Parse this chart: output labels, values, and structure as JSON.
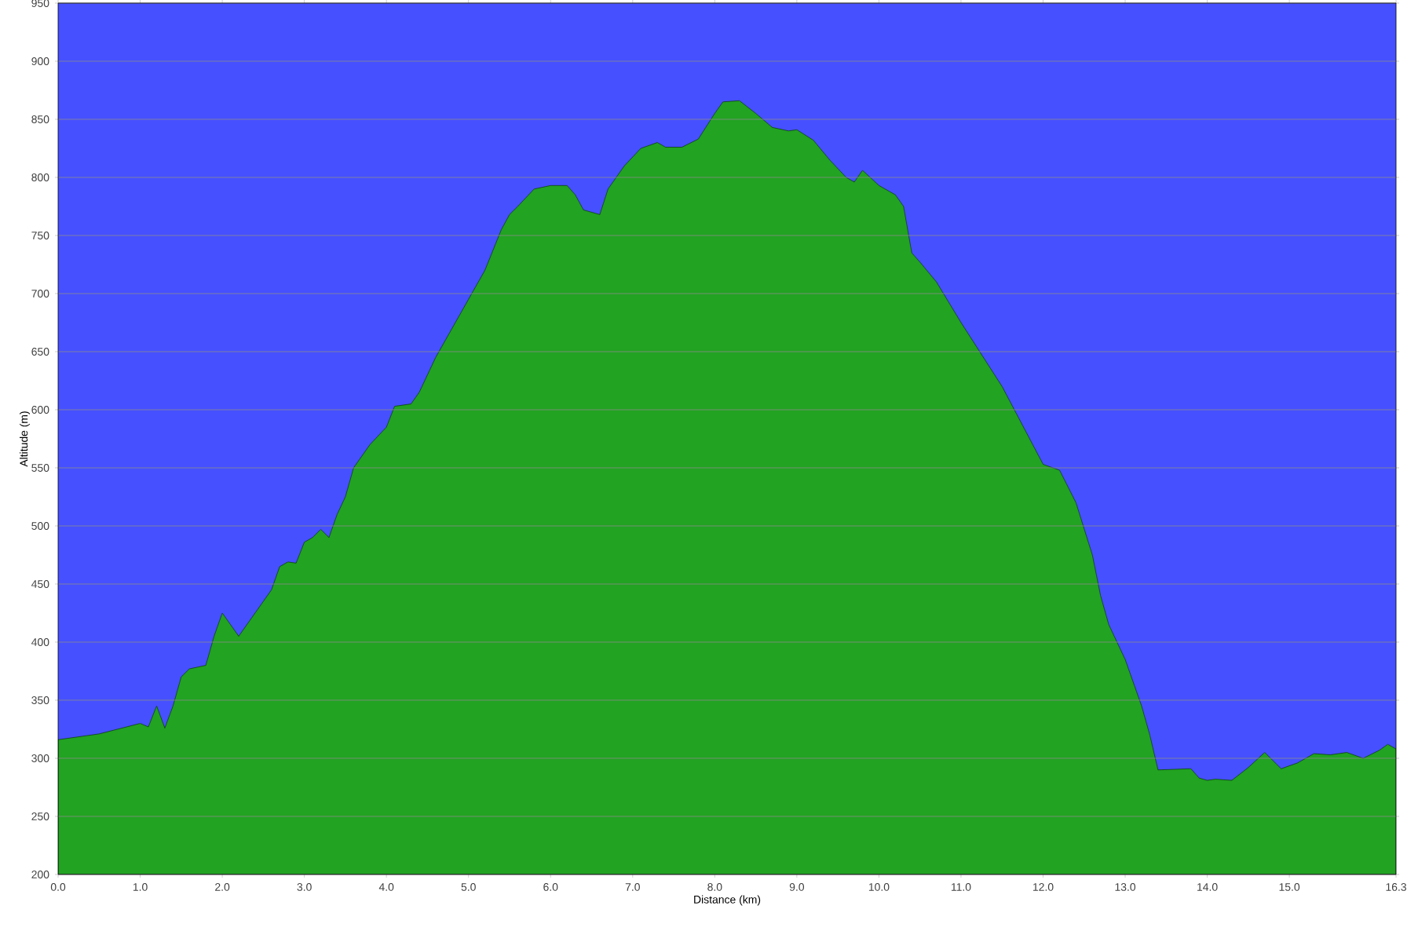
{
  "chart_data": {
    "type": "area",
    "xlabel": "Distance (km)",
    "ylabel": "Altitude (m)",
    "x": [
      0,
      0.5,
      1.0,
      1.1,
      1.2,
      1.3,
      1.4,
      1.5,
      1.6,
      1.8,
      1.9,
      2.0,
      2.2,
      2.4,
      2.6,
      2.7,
      2.8,
      2.9,
      3.0,
      3.1,
      3.2,
      3.3,
      3.4,
      3.5,
      3.6,
      3.8,
      4.0,
      4.1,
      4.3,
      4.4,
      4.6,
      4.8,
      5.0,
      5.2,
      5.4,
      5.5,
      5.6,
      5.8,
      6.0,
      6.2,
      6.3,
      6.4,
      6.6,
      6.7,
      6.9,
      7.1,
      7.3,
      7.4,
      7.6,
      7.8,
      8.0,
      8.1,
      8.3,
      8.5,
      8.7,
      8.9,
      9.0,
      9.2,
      9.4,
      9.6,
      9.7,
      9.8,
      10.0,
      10.2,
      10.3,
      10.4,
      10.5,
      10.7,
      11.0,
      11.5,
      12.0,
      12.2,
      12.4,
      12.6,
      12.7,
      12.8,
      13.0,
      13.2,
      13.3,
      13.4,
      13.8,
      13.9,
      14.0,
      14.1,
      14.3,
      14.5,
      14.7,
      14.9,
      15.1,
      15.3,
      15.5,
      15.7,
      15.9,
      16.1,
      16.2,
      16.3
    ],
    "values": [
      316,
      321,
      330,
      327,
      345,
      326,
      345,
      370,
      377,
      380,
      405,
      425,
      405,
      425,
      445,
      465,
      469,
      468,
      486,
      490,
      497,
      490,
      510,
      525,
      550,
      570,
      585,
      603,
      605,
      615,
      645,
      670,
      695,
      720,
      755,
      768,
      775,
      790,
      793,
      793,
      785,
      772,
      768,
      790,
      810,
      825,
      830,
      826,
      826,
      833,
      855,
      865,
      866,
      855,
      843,
      840,
      841,
      832,
      815,
      800,
      796,
      806,
      793,
      785,
      775,
      735,
      727,
      710,
      675,
      620,
      553,
      548,
      520,
      475,
      440,
      415,
      385,
      345,
      320,
      290,
      291,
      283,
      281,
      282,
      281,
      292,
      305,
      291,
      296,
      304,
      303,
      305,
      300,
      307,
      312,
      308
    ],
    "color": "#22a322",
    "xlim": [
      0,
      16.3
    ],
    "xticks": [
      {
        "value": 0,
        "label": "0.0"
      },
      {
        "value": 1,
        "label": "1.0"
      },
      {
        "value": 2,
        "label": "2.0"
      },
      {
        "value": 3,
        "label": "3.0"
      },
      {
        "value": 4,
        "label": "4.0"
      },
      {
        "value": 5,
        "label": "5.0"
      },
      {
        "value": 6,
        "label": "6.0"
      },
      {
        "value": 7,
        "label": "7.0"
      },
      {
        "value": 8,
        "label": "8.0"
      },
      {
        "value": 9,
        "label": "9.0"
      },
      {
        "value": 10,
        "label": "10.0"
      },
      {
        "value": 11,
        "label": "11.0"
      },
      {
        "value": 12,
        "label": "12.0"
      },
      {
        "value": 13,
        "label": "13.0"
      },
      {
        "value": 14,
        "label": "14.0"
      },
      {
        "value": 15,
        "label": "15.0"
      },
      {
        "value": 16.3,
        "label": "16.3"
      }
    ],
    "ylim": [
      200,
      950
    ],
    "yticks": [
      200,
      250,
      300,
      350,
      400,
      450,
      500,
      550,
      600,
      650,
      700,
      750,
      800,
      850,
      900,
      950
    ],
    "grid": "y",
    "marker": "none",
    "line_style": "solid"
  }
}
